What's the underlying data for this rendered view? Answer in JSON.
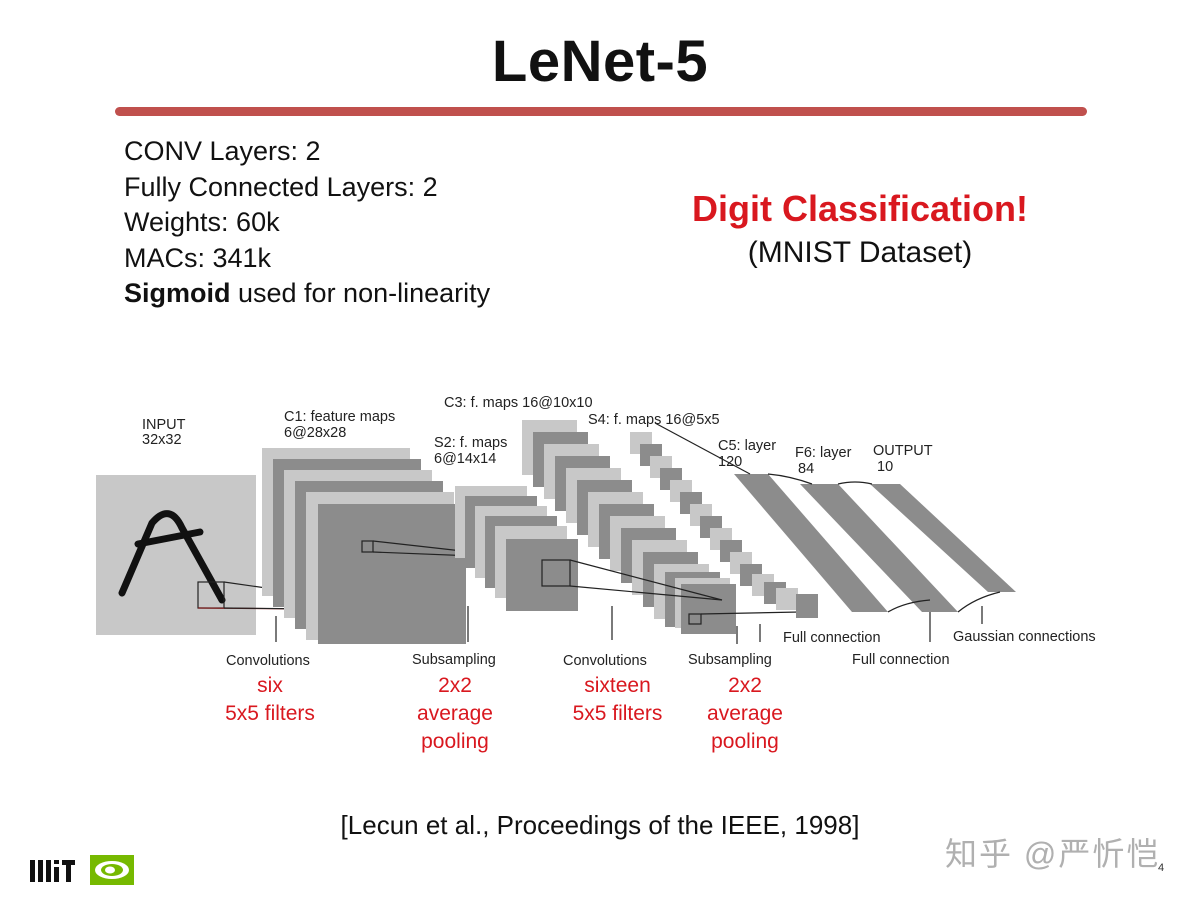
{
  "slide": {
    "title": "LeNet-5",
    "stats": [
      {
        "bold": "",
        "text": "CONV Layers: 2"
      },
      {
        "bold": "",
        "text": "Fully Connected Layers: 2"
      },
      {
        "bold": "",
        "text": "Weights: 60k"
      },
      {
        "bold": "",
        "text": "MACs: 341k"
      },
      {
        "bold": "Sigmoid",
        "text": " used for non-linearity"
      }
    ],
    "headline": "Digit Classification!",
    "subheadline": "(MNIST Dataset)",
    "citation": "[Lecun et al., Proceedings of the IEEE, 1998]",
    "watermark": "知乎 @严忻恺",
    "page_number": "4"
  },
  "diagram": {
    "layers": {
      "input": [
        "INPUT",
        "32x32"
      ],
      "c1": [
        "C1: feature maps",
        "6@28x28"
      ],
      "s2": [
        "S2: f. maps",
        "6@14x14"
      ],
      "c3": [
        "C3: f. maps 16@10x10"
      ],
      "s4": [
        "S4: f. maps 16@5x5"
      ],
      "c5": [
        "C5: layer",
        "120"
      ],
      "f6": [
        "F6: layer",
        "84"
      ],
      "output": [
        "OUTPUT",
        "10"
      ]
    },
    "operations": [
      "Convolutions",
      "Subsampling",
      "Convolutions",
      "Subsampling",
      "Full connection",
      "Full connection",
      "Gaussian connections"
    ],
    "annotations": [
      [
        "six",
        "5x5 filters"
      ],
      [
        "2x2",
        "average",
        "pooling"
      ],
      [
        "sixteen",
        "5x5 filters"
      ],
      [
        "2x2",
        "average",
        "pooling"
      ]
    ],
    "colors": {
      "accent_red": "#d9181f",
      "title_bar": "#c0504d",
      "map_dark": "#8c8c8c",
      "map_light": "#c8c8c8"
    }
  }
}
